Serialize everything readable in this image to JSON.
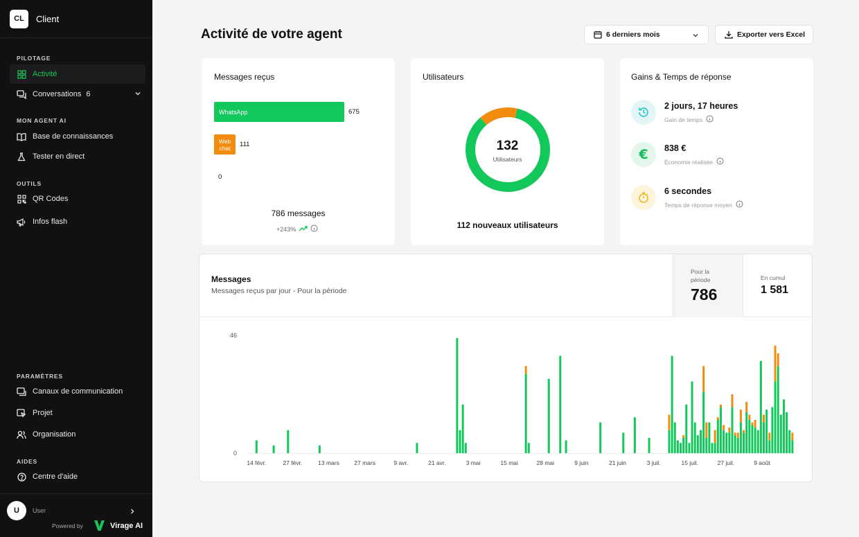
{
  "brand": {
    "initials": "CL",
    "name": "Client"
  },
  "sidebar": {
    "sections": [
      {
        "title": "PILOTAGE"
      },
      {
        "title": "MON AGENT AI"
      },
      {
        "title": "OUTILS"
      },
      {
        "title": "PARAMÈTRES"
      },
      {
        "title": "AIDES"
      }
    ],
    "items": [
      {
        "label": "Activité",
        "icon": "grid-icon",
        "active": true
      },
      {
        "label": "Conversations",
        "badge": "6",
        "icon": "chat-icon"
      },
      {
        "label": "Base de connaissances",
        "icon": "book-icon"
      },
      {
        "label": "Tester en direct",
        "icon": "flask-icon"
      },
      {
        "label": "QR Codes",
        "icon": "qr-icon"
      },
      {
        "label": "Infos flash",
        "icon": "megaphone-icon"
      },
      {
        "label": "Canaux de communication",
        "icon": "channels-icon"
      },
      {
        "label": "Projet",
        "icon": "project-icon"
      },
      {
        "label": "Organisation",
        "icon": "users-icon"
      },
      {
        "label": "Centre d'aide",
        "icon": "help-icon"
      }
    ],
    "user": {
      "initial": "U",
      "name": "User"
    },
    "powered_by": "Powered by",
    "vendor": "Virage AI"
  },
  "header": {
    "title": "Activité de votre agent",
    "period": "6 derniers mois",
    "export_label": "Exporter vers Excel"
  },
  "messages_card": {
    "title": "Messages reçus",
    "channels": [
      {
        "name": "WhatsApp",
        "value": "675",
        "color": "#12c85a"
      },
      {
        "name": "Web chat",
        "line1": "Web",
        "line2": "chat",
        "value": "111",
        "color": "#f28c0f"
      },
      {
        "name": "",
        "value": "0"
      }
    ],
    "total": "786 messages",
    "growth": "+243%"
  },
  "users_card": {
    "title": "Utilisateurs",
    "total": "132",
    "total_label": "Utilisateurs",
    "new_users": "112 nouveaux utilisateurs",
    "segments": [
      {
        "value": 0.85,
        "color": "#12c85a"
      },
      {
        "value": 0.15,
        "color": "#f28c0f"
      }
    ]
  },
  "gains_card": {
    "title": "Gains & Temps de réponse",
    "rows": [
      {
        "value": "2 jours, 17 heures",
        "label": "Gain de temps",
        "icon": "history-icon"
      },
      {
        "value": "838 €",
        "label": "Économie réalisée",
        "icon": "euro-icon"
      },
      {
        "value": "6 secondes",
        "label": "Temps de réponse moyen",
        "icon": "timer-icon"
      }
    ]
  },
  "messages_chart": {
    "title": "Messages",
    "subtitle": "Messages reçus par jour - Pour la période",
    "period_label_1": "Pour la",
    "period_label_2": "période",
    "period_value": "786",
    "cumul_label": "En cumul",
    "cumul_value": "1 581"
  },
  "chart_data": {
    "type": "bar",
    "stacked": true,
    "ylim": [
      0,
      46
    ],
    "y_ticks": [
      "0",
      "46"
    ],
    "x_tick_labels": [
      "14 févr.",
      "27 févr.",
      "13 mars",
      "27 mars",
      "9 avr.",
      "21 avr.",
      "3 mai",
      "15 mai",
      "28 mai",
      "9 juin",
      "21 juin",
      "3 juil.",
      "15 juil.",
      "27 juil.",
      "9 août"
    ],
    "colors": {
      "whatsapp": "#12c85a",
      "webchat": "#f28c0f"
    },
    "days": [
      {
        "d": 2,
        "wa": 5,
        "wc": 0
      },
      {
        "d": 8,
        "wa": 3,
        "wc": 0
      },
      {
        "d": 13,
        "wa": 9,
        "wc": 0
      },
      {
        "d": 24,
        "wa": 3,
        "wc": 0
      },
      {
        "d": 58,
        "wa": 4,
        "wc": 0
      },
      {
        "d": 72,
        "wa": 45,
        "wc": 0
      },
      {
        "d": 73,
        "wa": 9,
        "wc": 0
      },
      {
        "d": 74,
        "wa": 19,
        "wc": 0
      },
      {
        "d": 75,
        "wa": 4,
        "wc": 0
      },
      {
        "d": 96,
        "wa": 31,
        "wc": 3
      },
      {
        "d": 97,
        "wa": 4,
        "wc": 0
      },
      {
        "d": 104,
        "wa": 29,
        "wc": 0
      },
      {
        "d": 108,
        "wa": 38,
        "wc": 0
      },
      {
        "d": 110,
        "wa": 5,
        "wc": 0
      },
      {
        "d": 122,
        "wa": 12,
        "wc": 0
      },
      {
        "d": 130,
        "wa": 8,
        "wc": 0
      },
      {
        "d": 134,
        "wa": 14,
        "wc": 0
      },
      {
        "d": 139,
        "wa": 6,
        "wc": 0
      },
      {
        "d": 146,
        "wa": 9,
        "wc": 6
      },
      {
        "d": 147,
        "wa": 38,
        "wc": 0
      },
      {
        "d": 148,
        "wa": 12,
        "wc": 0
      },
      {
        "d": 149,
        "wa": 5,
        "wc": 0
      },
      {
        "d": 150,
        "wa": 4,
        "wc": 0
      },
      {
        "d": 151,
        "wa": 6,
        "wc": 1
      },
      {
        "d": 152,
        "wa": 19,
        "wc": 0
      },
      {
        "d": 153,
        "wa": 4,
        "wc": 0
      },
      {
        "d": 154,
        "wa": 28,
        "wc": 0
      },
      {
        "d": 155,
        "wa": 12,
        "wc": 0
      },
      {
        "d": 156,
        "wa": 7,
        "wc": 0
      },
      {
        "d": 157,
        "wa": 9,
        "wc": 0
      },
      {
        "d": 158,
        "wa": 24,
        "wc": 10
      },
      {
        "d": 159,
        "wa": 6,
        "wc": 6
      },
      {
        "d": 160,
        "wa": 12,
        "wc": 0
      },
      {
        "d": 161,
        "wa": 4,
        "wc": 0
      },
      {
        "d": 162,
        "wa": 4,
        "wc": 5
      },
      {
        "d": 163,
        "wa": 13,
        "wc": 1
      },
      {
        "d": 164,
        "wa": 18,
        "wc": 1
      },
      {
        "d": 165,
        "wa": 9,
        "wc": 2
      },
      {
        "d": 166,
        "wa": 8,
        "wc": 0
      },
      {
        "d": 167,
        "wa": 8,
        "wc": 2
      },
      {
        "d": 168,
        "wa": 18,
        "wc": 5
      },
      {
        "d": 169,
        "wa": 7,
        "wc": 1
      },
      {
        "d": 170,
        "wa": 6,
        "wc": 2
      },
      {
        "d": 171,
        "wa": 12,
        "wc": 5
      },
      {
        "d": 172,
        "wa": 8,
        "wc": 1
      },
      {
        "d": 173,
        "wa": 16,
        "wc": 4
      },
      {
        "d": 174,
        "wa": 13,
        "wc": 2
      },
      {
        "d": 175,
        "wa": 11,
        "wc": 1
      },
      {
        "d": 176,
        "wa": 10,
        "wc": 3
      },
      {
        "d": 177,
        "wa": 9,
        "wc": 0
      },
      {
        "d": 178,
        "wa": 36,
        "wc": 0
      },
      {
        "d": 179,
        "wa": 12,
        "wc": 3
      },
      {
        "d": 180,
        "wa": 17,
        "wc": 0
      },
      {
        "d": 181,
        "wa": 5,
        "wc": 3
      },
      {
        "d": 182,
        "wa": 18,
        "wc": 0
      },
      {
        "d": 183,
        "wa": 28,
        "wc": 14
      },
      {
        "d": 184,
        "wa": 34,
        "wc": 5
      },
      {
        "d": 185,
        "wa": 15,
        "wc": 0
      },
      {
        "d": 186,
        "wa": 21,
        "wc": 0
      },
      {
        "d": 187,
        "wa": 16,
        "wc": 0
      },
      {
        "d": 188,
        "wa": 9,
        "wc": 0
      },
      {
        "d": 189,
        "wa": 5,
        "wc": 3
      }
    ]
  }
}
